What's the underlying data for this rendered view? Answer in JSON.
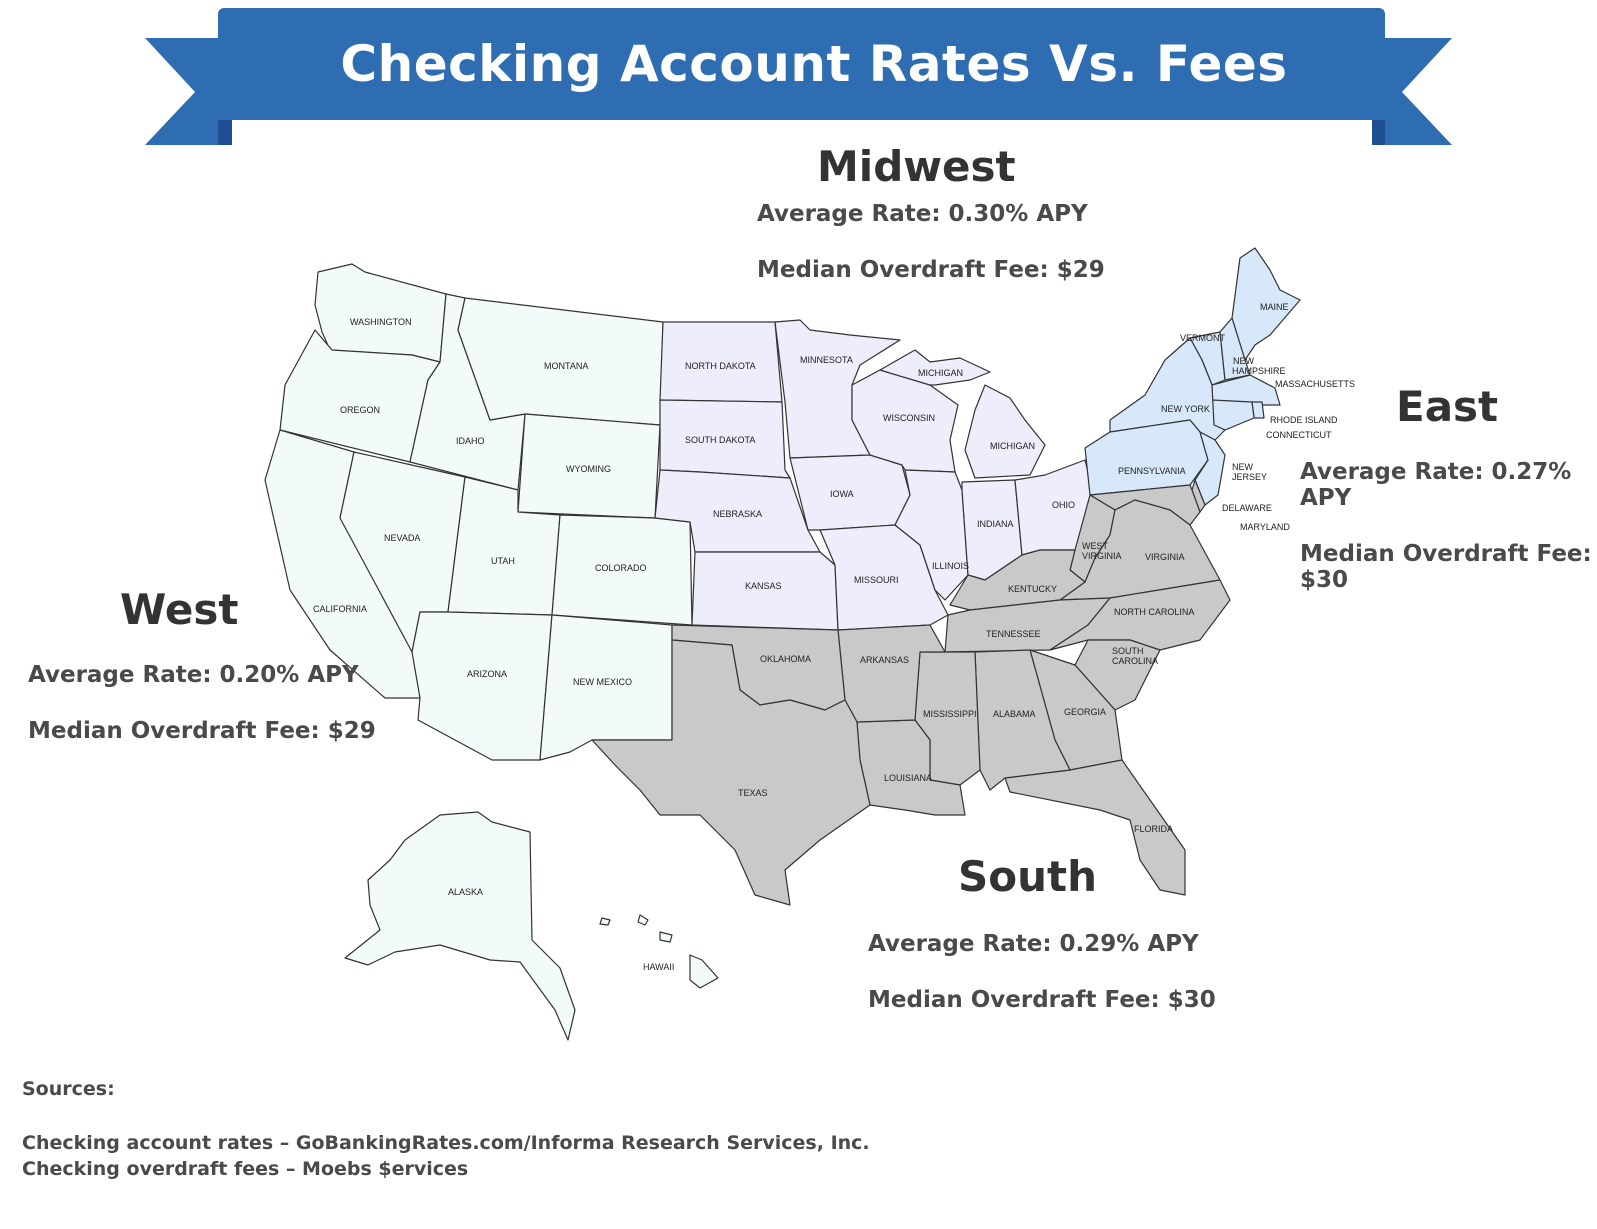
{
  "title": "Checking Account Rates Vs. Fees",
  "colors": {
    "banner": "#2f6db3",
    "banner_fold": "#1f4f92",
    "west": "#f2fbf9",
    "midwest": "#eeedfb",
    "east": "#d6e8fa",
    "south": "#c9c9c9",
    "border": "#333333"
  },
  "regions": {
    "midwest": {
      "name": "Midwest",
      "rate": "Average Rate: 0.30% APY",
      "fee": "Median Overdraft Fee: $29"
    },
    "east": {
      "name": "East",
      "rate": "Average Rate: 0.27% APY",
      "fee": "Median Overdraft Fee: $30"
    },
    "west": {
      "name": "West",
      "rate": "Average Rate: 0.20% APY",
      "fee": "Median Overdraft Fee: $29"
    },
    "south": {
      "name": "South",
      "rate": "Average Rate: 0.29% APY",
      "fee": "Median Overdraft Fee: $30"
    }
  },
  "states": {
    "washington": "WASHINGTON",
    "oregon": "OREGON",
    "california": "CALIFORNIA",
    "idaho": "IDAHO",
    "nevada": "NEVADA",
    "montana": "MONTANA",
    "wyoming": "WYOMING",
    "utah": "UTAH",
    "colorado": "COLORADO",
    "arizona": "ARIZONA",
    "new_mexico": "NEW MEXICO",
    "alaska": "ALASKA",
    "hawaii": "HAWAII",
    "north_dakota": "NORTH DAKOTA",
    "south_dakota": "SOUTH DAKOTA",
    "nebraska": "NEBRASKA",
    "kansas": "KANSAS",
    "minnesota": "MINNESOTA",
    "iowa": "IOWA",
    "missouri": "MISSOURI",
    "wisconsin": "WISCONSIN",
    "michigan_up": "MICHIGAN",
    "michigan": "MICHIGAN",
    "illinois": "ILLINOIS",
    "indiana": "INDIANA",
    "ohio": "OHIO",
    "maine": "MAINE",
    "vermont": "VERMONT",
    "new_hampshire_1": "NEW",
    "new_hampshire_2": "HAMPSHIRE",
    "massachusetts": "MASSACHUSETTS",
    "new_york": "NEW YORK",
    "rhode_island": "RHODE ISLAND",
    "connecticut": "CONNECTICUT",
    "pennsylvania": "PENNSYLVANIA",
    "new_jersey_1": "NEW",
    "new_jersey_2": "JERSEY",
    "delaware": "DELAWARE",
    "maryland": "MARYLAND",
    "west_virginia_1": "WEST",
    "west_virginia_2": "VIRGINIA",
    "virginia": "VIRGINIA",
    "kentucky": "KENTUCKY",
    "tennessee": "TENNESSEE",
    "north_carolina": "NORTH CAROLINA",
    "south_carolina_1": "SOUTH",
    "south_carolina_2": "CAROLINA",
    "oklahoma": "OKLAHOMA",
    "arkansas": "ARKANSAS",
    "texas": "TEXAS",
    "louisiana": "LOUISIANA",
    "mississippi": "MISSISSIPPI",
    "alabama": "ALABAMA",
    "georgia": "GEORGIA",
    "florida": "FLORIDA"
  },
  "sources": {
    "heading": "Sources:",
    "line1": "Checking account rates – GoBankingRates.com/Informa Research Services, Inc.",
    "line2": "Checking overdraft fees – Moebs $ervices"
  }
}
